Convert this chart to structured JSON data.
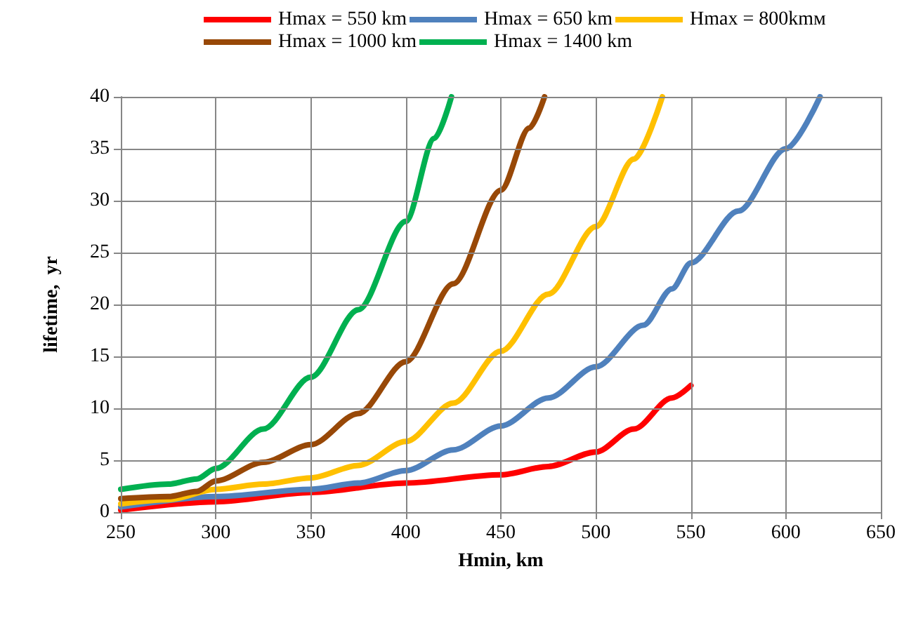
{
  "chart_data": {
    "type": "line",
    "xlabel": "Hmin, km",
    "ylabel": "lifetime,  yr",
    "xlim": [
      250,
      650
    ],
    "xticks": [
      250,
      300,
      350,
      400,
      450,
      500,
      550,
      600,
      650
    ],
    "ylim": [
      0,
      40
    ],
    "yticks": [
      0,
      5,
      10,
      15,
      20,
      25,
      30,
      35,
      40
    ],
    "grid": true,
    "legend": "top",
    "marker": "none",
    "line_style": "solid",
    "series": [
      {
        "name": "Hmax = 550 km",
        "color": "#ff0000",
        "x": [
          250,
          300,
          350,
          400,
          450,
          475,
          500,
          520,
          540,
          550
        ],
        "values": [
          0.2,
          1,
          1.9,
          2.8,
          3.6,
          4.4,
          5.8,
          8,
          11,
          12.2
        ]
      },
      {
        "name": "Hmax = 650 km",
        "color": "#4f81bd",
        "x": [
          250,
          300,
          350,
          375,
          400,
          425,
          450,
          475,
          500,
          525,
          540,
          550,
          575,
          600,
          618
        ],
        "values": [
          0.5,
          1.5,
          2.2,
          2.8,
          4,
          6,
          8.3,
          11,
          14,
          18,
          21.5,
          24,
          29,
          35,
          40
        ]
      },
      {
        "name": "Hmax = 800kmм",
        "color": "#ffc000",
        "x": [
          250,
          275,
          300,
          325,
          350,
          375,
          400,
          425,
          450,
          475,
          500,
          520,
          535
        ],
        "values": [
          0.8,
          1.2,
          2.2,
          2.7,
          3.3,
          4.5,
          6.8,
          10.5,
          15.5,
          21,
          27.5,
          34,
          40
        ]
      },
      {
        "name": "Hmax = 1000 km",
        "color": "#984807",
        "x": [
          250,
          275,
          290,
          300,
          325,
          350,
          375,
          400,
          425,
          450,
          465,
          473
        ],
        "values": [
          1.3,
          1.5,
          2,
          3,
          4.8,
          6.5,
          9.5,
          14.5,
          22,
          31,
          37,
          40
        ]
      },
      {
        "name": "Hmax = 1400 km",
        "color": "#00b050",
        "x": [
          250,
          275,
          290,
          300,
          325,
          350,
          375,
          400,
          415,
          424
        ],
        "values": [
          2.2,
          2.7,
          3.2,
          4.2,
          8,
          13,
          19.5,
          28,
          36,
          40
        ]
      }
    ]
  }
}
